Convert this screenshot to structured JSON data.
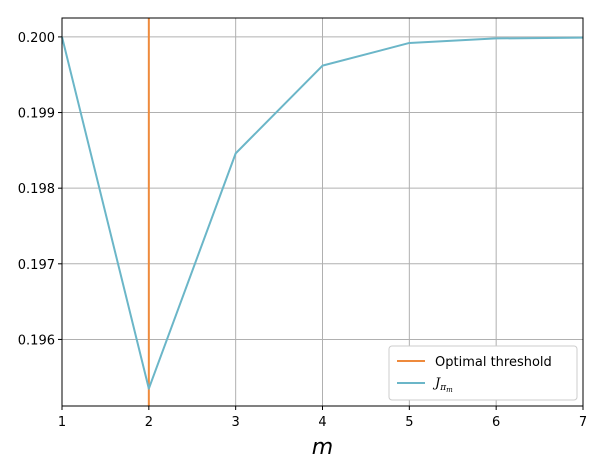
{
  "chart_data": {
    "type": "line",
    "title": "",
    "xlabel": "m",
    "ylabel": "",
    "xlim": [
      1,
      7
    ],
    "ylim": [
      0.19512,
      0.20025
    ],
    "xticks": [
      1,
      2,
      3,
      4,
      5,
      6,
      7
    ],
    "yticks": [
      0.196,
      0.197,
      0.198,
      0.199,
      0.2
    ],
    "ytick_labels": [
      "0.196",
      "0.197",
      "0.198",
      "0.199",
      "0.200"
    ],
    "grid": true,
    "legend_position": "lower-right",
    "series": [
      {
        "name": "J_{π_m}",
        "legend_base": "J",
        "legend_sub": "π",
        "legend_subsub": "m",
        "color": "#6bb6c8",
        "x": [
          1,
          2,
          3,
          4,
          5,
          6,
          7
        ],
        "y": [
          0.2,
          0.19535,
          0.19846,
          0.19962,
          0.19992,
          0.19998,
          0.19999
        ]
      }
    ],
    "vlines": [
      {
        "name": "Optimal threshold",
        "x": 2,
        "color": "#ee8a3c"
      }
    ]
  }
}
